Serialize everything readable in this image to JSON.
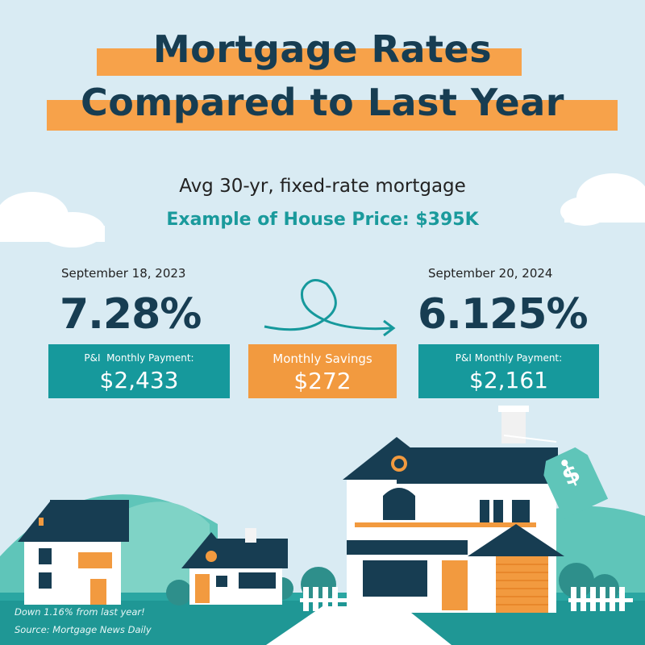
{
  "title": {
    "line1": "Mortgage Rates",
    "line2": "Compared to Last Year"
  },
  "subtitle": "Avg 30-yr, fixed-rate mortgage",
  "house_price": "Example of House Price: $395K",
  "last_year": {
    "date": "September 18, 2023",
    "rate": "7.28%",
    "payment_label": "P&I  Monthly Payment:",
    "payment_value": "$2,433"
  },
  "this_year": {
    "date": "September 20, 2024",
    "rate": "6.125%",
    "payment_label": "P&I Monthly Payment:",
    "payment_value": "$2,161"
  },
  "savings": {
    "label": "Monthly Savings",
    "value": "$272"
  },
  "footnotes": {
    "change": "Down 1.16% from last year!",
    "source": "Source: Mortgage News Daily"
  },
  "price_tag_symbol": "$",
  "colors": {
    "navy": "#173d52",
    "teal": "#16999c",
    "orange": "#f29a3f",
    "highlight": "#f7a24a",
    "sky": "#d9ebf3"
  },
  "icons": [
    "cloud-icon",
    "arrow-loop-icon",
    "house-icon",
    "price-tag-icon"
  ]
}
